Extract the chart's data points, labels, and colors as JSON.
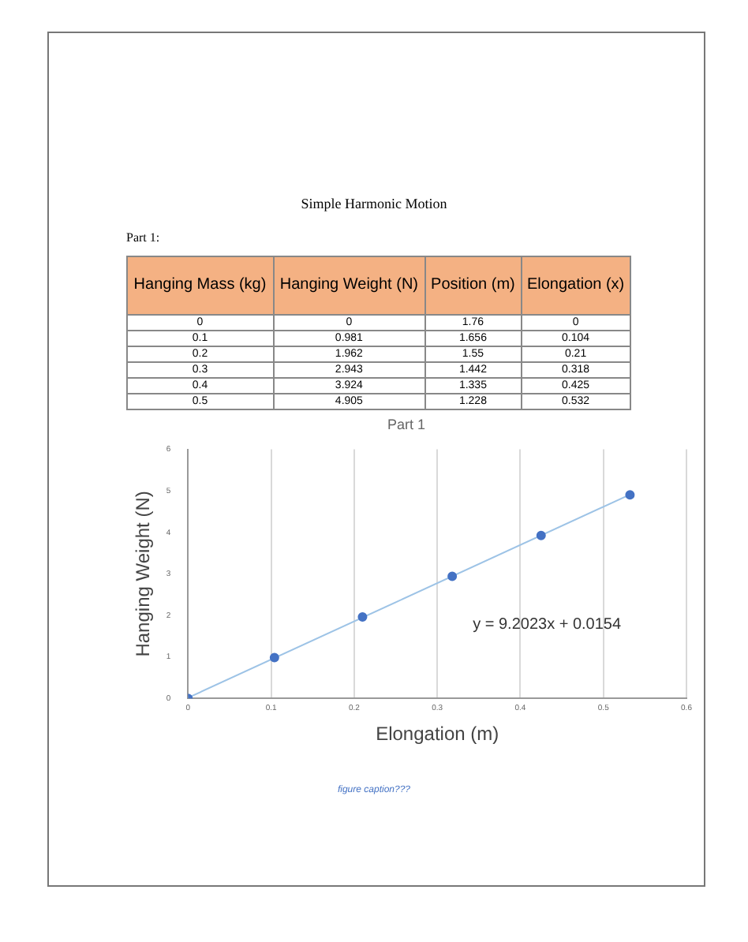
{
  "chart_data": {
    "type": "scatter",
    "title": "Part 1",
    "xlabel": "Elongation (m)",
    "ylabel": "Hanging Weight (N)",
    "xlim": [
      0,
      0.6
    ],
    "xticks": [
      0,
      0.1,
      0.2,
      0.3,
      0.4,
      0.5,
      0.6
    ],
    "ylim": [
      0,
      6
    ],
    "yticks": [
      0,
      1,
      2,
      3,
      4,
      5,
      6
    ],
    "grid": "x",
    "legend": false,
    "series": [
      {
        "marker": "circle",
        "color": "#4472c4",
        "x": [
          0,
          0.104,
          0.21,
          0.318,
          0.425,
          0.532
        ],
        "values": [
          0,
          0.981,
          1.962,
          2.943,
          3.924,
          4.905
        ]
      },
      {
        "type": "line",
        "marker": "none",
        "color": "#9dc3e6",
        "x": [
          0,
          0.532
        ],
        "values": [
          0.0154,
          4.911
        ]
      }
    ],
    "annotations": [
      "Simple Harmonic Motion",
      "Part 1:",
      "Hanging Mass (kg)",
      "Hanging Weight (N)",
      "Position (m)",
      "Elongation (x)",
      "0",
      "0",
      "1.76",
      "0",
      "0.1",
      "0.981",
      "1.656",
      "0.104",
      "0.2",
      "1.962",
      "1.55",
      "0.21",
      "0.3",
      "2.943",
      "1.442",
      "0.318",
      "0.4",
      "3.924",
      "1.335",
      "0.425",
      "0.5",
      "4.905",
      "1.228",
      "0.532",
      "y = 9.2023x + 0.0154",
      "figure caption???"
    ]
  }
}
